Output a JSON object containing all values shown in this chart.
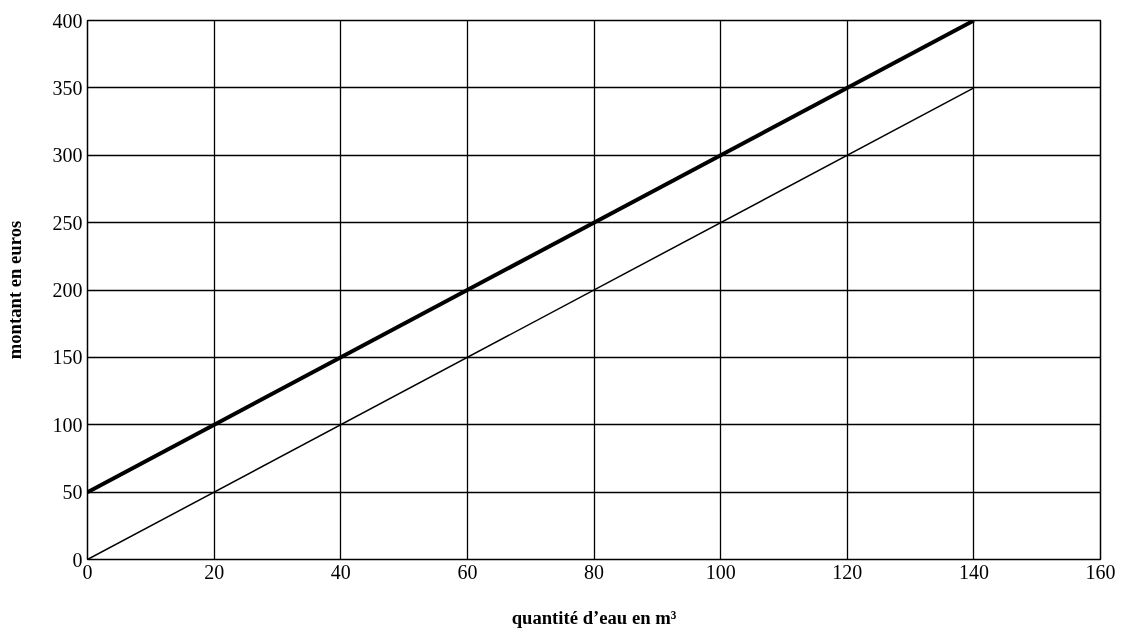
{
  "chart_data": {
    "type": "line",
    "xlabel": "quantité d’eau en m³",
    "ylabel": "montant en euros",
    "x": [
      0,
      140
    ],
    "series": [
      {
        "color": "#000000",
        "values": [
          50,
          400
        ]
      },
      {
        "color": "#000000",
        "values": [
          0,
          350
        ]
      }
    ],
    "xlim": [
      0,
      160
    ],
    "ylim": [
      0,
      400
    ],
    "xticks": [
      0,
      20,
      40,
      60,
      80,
      100,
      120,
      140,
      160
    ],
    "yticks": [
      0,
      50,
      100,
      150,
      200,
      250,
      300,
      350,
      400
    ],
    "grid": true,
    "marker": "none",
    "line_style": "solid"
  }
}
